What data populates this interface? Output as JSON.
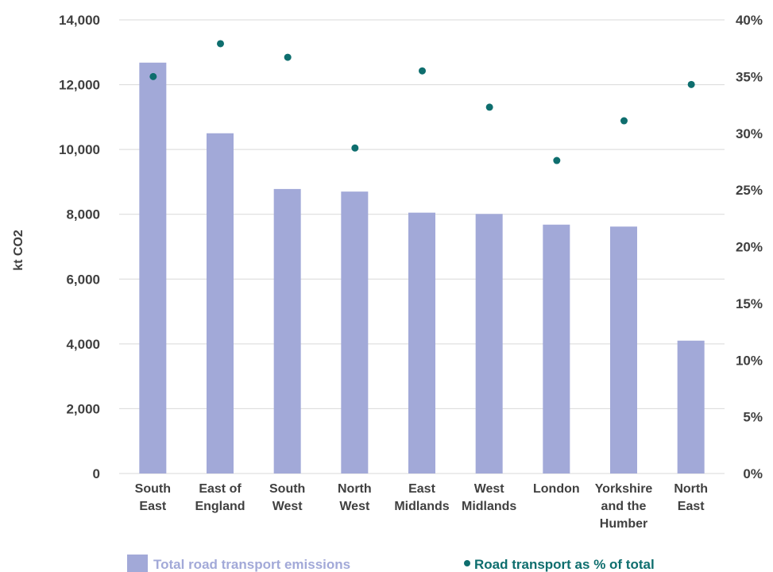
{
  "chart_data": {
    "type": "bar",
    "categories": [
      [
        "South",
        "East"
      ],
      [
        "East of",
        "England"
      ],
      [
        "South",
        "West"
      ],
      [
        "North",
        "West"
      ],
      [
        "East",
        "Midlands"
      ],
      [
        "West",
        "Midlands"
      ],
      [
        "London"
      ],
      [
        "Yorkshire",
        "and the",
        "Humber"
      ],
      [
        "North",
        "East"
      ]
    ],
    "series": [
      {
        "name": "Total road transport emissions",
        "type": "bar",
        "axis": "left",
        "color": "#a2a9d8",
        "values": [
          12680,
          10500,
          8780,
          8700,
          8050,
          8010,
          7680,
          7620,
          4100
        ]
      },
      {
        "name": "Road transport as % of total",
        "type": "scatter",
        "axis": "right",
        "color": "#0e6e6e",
        "values": [
          35.0,
          37.9,
          36.7,
          28.7,
          35.5,
          32.3,
          27.6,
          31.1,
          34.3
        ]
      }
    ],
    "ylabel": "kt CO2",
    "ylim": [
      0,
      14000
    ],
    "y_ticks": [
      "0",
      "2,000",
      "4,000",
      "6,000",
      "8,000",
      "10,000",
      "12,000",
      "14,000"
    ],
    "y2lim": [
      0,
      40
    ],
    "y2_ticks": [
      "0%",
      "5%",
      "10%",
      "15%",
      "20%",
      "25%",
      "30%",
      "35%",
      "40%"
    ],
    "grid": true,
    "legend_position": "bottom",
    "legend_colors": {
      "bar_label": "#a2a9d8",
      "dot_label": "#0e6e6e"
    }
  }
}
